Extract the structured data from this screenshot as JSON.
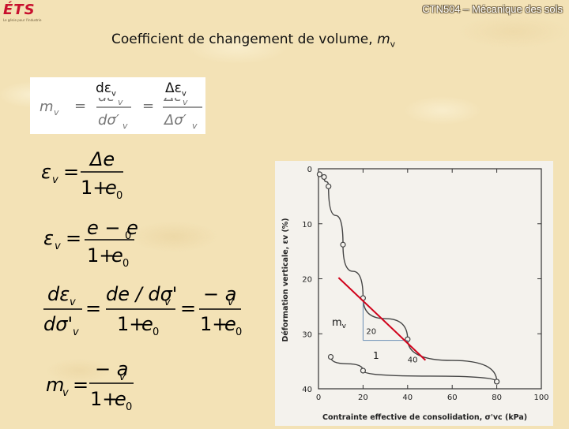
{
  "header": {
    "logo_text": "ÉTS",
    "logo_subtitle": "Le génie pour l'industrie",
    "course_title": "CTN504 – Mécanique des sols"
  },
  "slide": {
    "title_prefix": "Coefficient de changement de volume, ",
    "title_symbol": "m",
    "title_subscript": "v"
  },
  "formula_box": {
    "labels": [
      {
        "prefix": "dε",
        "sub": "v"
      },
      {
        "prefix": "Δε",
        "sub": "v"
      }
    ],
    "expr": {
      "lhs": "m",
      "lhs_sub": "v",
      "eq": "=",
      "num1": "dε",
      "num1_sub": "v",
      "den1": "dσ′",
      "den1_sub": "v",
      "num2": "Δε",
      "num2_sub": "v",
      "den2": "Δσ′",
      "den2_sub": "v"
    }
  },
  "equations": {
    "eq1": {
      "lhs": "ε",
      "lhs_sub": "v",
      "num": "Δe",
      "den_1": "1+",
      "den_e": "e",
      "den_sub": "0"
    },
    "eq2": {
      "lhs": "ε",
      "lhs_sub": "v",
      "num": "e − e",
      "num_sub": "0",
      "den_1": "1+",
      "den_e": "e",
      "den_sub": "0"
    },
    "eq3": {
      "lhs_num": "dε",
      "lhs_num_sub": "v",
      "lhs_den": "dσ'",
      "lhs_den_sub": "v",
      "mid_num": "de / dσ'",
      "mid_num_sub": "v",
      "mid_den_1": "1+",
      "mid_den_e": "e",
      "mid_den_sub": "0",
      "rhs_num": "− a",
      "rhs_num_sub": "v",
      "rhs_den_1": "1+",
      "rhs_den_e": "e",
      "rhs_den_sub": "0"
    },
    "eq4": {
      "lhs": "m",
      "lhs_sub": "v",
      "num": "− a",
      "num_sub": "v",
      "den_1": "1+",
      "den_e": "e",
      "den_sub": "0"
    }
  },
  "graph": {
    "annotation_mv": "m",
    "annotation_mv_sub": "v",
    "annotation_one": "1",
    "accent_red": "#d0021b"
  },
  "chart_data": {
    "type": "line",
    "xlabel": "Contrainte effective de consolidation, σ'vc (kPa)",
    "ylabel": "Déformation verticale, εv (%)",
    "xlim": [
      0,
      100
    ],
    "ylim": [
      0,
      40
    ],
    "y_inverted": true,
    "x_ticks": [
      "0",
      "20",
      "40",
      "60",
      "80",
      "100"
    ],
    "y_ticks": [
      "0",
      "10",
      "20",
      "30",
      "40"
    ],
    "series": [
      {
        "points": [
          [
            0.5,
            1.0
          ],
          [
            2.5,
            1.5
          ],
          [
            4.5,
            3.2
          ],
          [
            11,
            13.8
          ],
          [
            20,
            23.5
          ],
          [
            40,
            31.0
          ],
          [
            80,
            38.7
          ]
        ]
      },
      {
        "points": [
          [
            80,
            38.7
          ],
          [
            20,
            36.7
          ],
          [
            5.5,
            34.2
          ]
        ]
      }
    ],
    "tangent_line": {
      "from": [
        9,
        19.8
      ],
      "to": [
        48,
        34.8
      ],
      "color": "#d0021b"
    },
    "slope_triangle": {
      "x": [
        20,
        40
      ],
      "y": [
        31.2
      ],
      "labels": [
        "20",
        "40"
      ]
    }
  }
}
